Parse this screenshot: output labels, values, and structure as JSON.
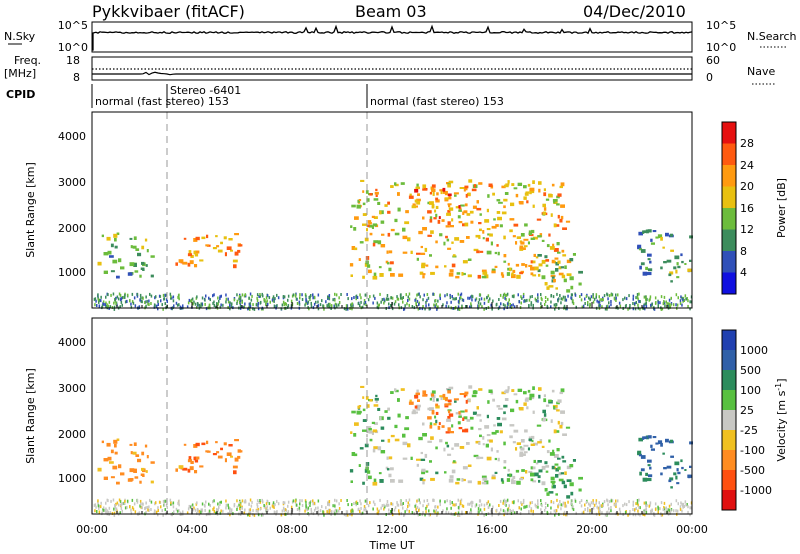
{
  "header": {
    "station": "Pykkvibaer (fitACF)",
    "beam": "Beam 03",
    "date": "04/Dec/2010"
  },
  "strips": {
    "nsky_label": "N.Sky",
    "nsky_ticks": [
      "10^5",
      "10^0"
    ],
    "nsearch_label": "N.Search",
    "nsearch_ticks": [
      "10^5",
      "10^0"
    ],
    "freq_label": "Freq.",
    "freq_unit": "[MHz]",
    "freq_ticks": [
      "18",
      "8"
    ],
    "nave_label": "Nave",
    "nave_ticks": [
      "60",
      "0"
    ],
    "cpid_label": "CPID",
    "cpid_segments": [
      {
        "text": "normal (fast stereo) 153",
        "start_hour": 0
      },
      {
        "text": "Stereo -6401",
        "start_hour": 3
      },
      {
        "text": "normal (fast stereo) 153",
        "start_hour": 11
      }
    ]
  },
  "panels": {
    "power": {
      "ylabel": "Slant Range [km]",
      "yticks": [
        "4000",
        "3000",
        "2000",
        "1000"
      ],
      "colorbar_label": "Power [dB]",
      "colorbar_ticks": [
        "28",
        "24",
        "20",
        "16",
        "12",
        "8",
        "4"
      ]
    },
    "velocity": {
      "ylabel": "Slant Range [km]",
      "yticks": [
        "4000",
        "3000",
        "2000",
        "1000"
      ],
      "colorbar_label": "Velocity [m s",
      "colorbar_label_sup": "-1",
      "colorbar_label_end": "]",
      "colorbar_ticks": [
        "1000",
        "500",
        "100",
        "25",
        "-25",
        "-100",
        "-500",
        "-1000"
      ]
    }
  },
  "xaxis": {
    "label": "Time UT",
    "ticks": [
      "00:00",
      "04:00",
      "08:00",
      "12:00",
      "16:00",
      "20:00",
      "00:00"
    ]
  },
  "colors": {
    "power_scale": [
      "#e61010",
      "#ff5a10",
      "#ff9a10",
      "#e8c010",
      "#6cbc3c",
      "#3c8c5c",
      "#3050b8",
      "#1010e0"
    ],
    "velocity_scale": [
      "#2040b0",
      "#3060a8",
      "#2c8c5c",
      "#58c040",
      "#c8c8c4",
      "#f0c020",
      "#ff8c20",
      "#ff5010",
      "#e01010"
    ]
  },
  "chart_data": {
    "type": "heatmap",
    "x_range_hours": [
      0,
      24
    ],
    "y_range_km": [
      180,
      4600
    ],
    "power_range_db": [
      0,
      30
    ],
    "velocity_range_ms": [
      -1200,
      1200
    ],
    "time_marker_hours": [
      3,
      11
    ],
    "echo_regions": [
      {
        "t0": 0.2,
        "t1": 2.4,
        "r0": 900,
        "r1": 1900,
        "power_db": 12,
        "velocity_ms": -150
      },
      {
        "t0": 3.3,
        "t1": 5.9,
        "r0": 1100,
        "r1": 1900,
        "power_db": 22,
        "velocity_ms": -220
      },
      {
        "t0": 10.3,
        "t1": 19.0,
        "r0": 900,
        "r1": 3100,
        "power_db": 18,
        "velocity_ms": 15
      },
      {
        "t0": 12.6,
        "t1": 15.0,
        "r0": 2000,
        "r1": 3000,
        "power_db": 22,
        "velocity_ms": -300
      },
      {
        "t0": 17.5,
        "t1": 19.5,
        "r0": 600,
        "r1": 1500,
        "power_db": 14,
        "velocity_ms": 120
      },
      {
        "t0": 21.8,
        "t1": 24.0,
        "r0": 800,
        "r1": 2000,
        "power_db": 10,
        "velocity_ms": 300
      }
    ]
  }
}
